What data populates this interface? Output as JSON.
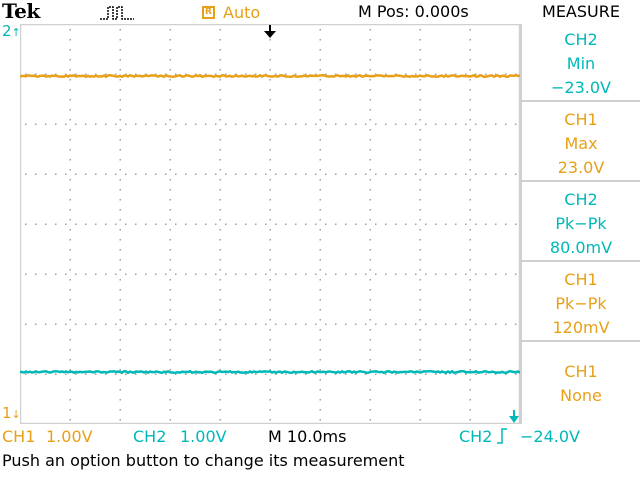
{
  "colors": {
    "ch1": "#e8a018",
    "ch2": "#00b8b8",
    "grid": "#a0a0a0",
    "frame": "#d0d0d0"
  },
  "header": {
    "brand": "Tek",
    "acquisition_icon": "pulse-run-icon",
    "trigger_box": "R",
    "trigger_status": "Auto",
    "m_pos": "M Pos: 0.000s",
    "menu_title": "MEASURE"
  },
  "markers": {
    "ch2_marker": "2",
    "ch1_marker": "1"
  },
  "measurements": [
    {
      "channel": "CH2",
      "type": "Min",
      "value": "−23.0V",
      "color": "ch2"
    },
    {
      "channel": "CH1",
      "type": "Max",
      "value": "23.0V",
      "color": "ch1"
    },
    {
      "channel": "CH2",
      "type": "Pk−Pk",
      "value": "80.0mV",
      "color": "ch2"
    },
    {
      "channel": "CH1",
      "type": "Pk−Pk",
      "value": "120mV",
      "color": "ch1"
    },
    {
      "channel": "CH1",
      "type": "None",
      "value": "",
      "color": "ch1"
    }
  ],
  "status": {
    "ch1_label": "CH1",
    "ch1_scale": "1.00V",
    "ch2_label": "CH2",
    "ch2_scale": "1.00V",
    "timebase": "M 10.0ms",
    "trigger_source": "CH2",
    "trigger_level": "−24.0V"
  },
  "message": "Push an option button to change its measurement"
}
